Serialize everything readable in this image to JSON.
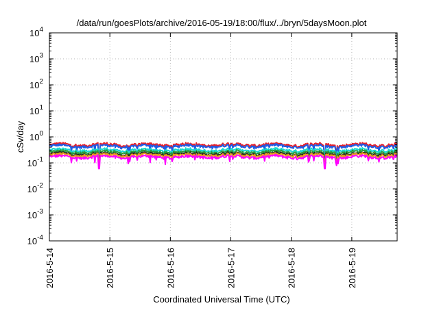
{
  "chart_data": {
    "type": "line",
    "title": "/data/run/goesPlots/archive/2016-05-19/18:00/flux/../bryn/5daysMoon.plot",
    "xlabel": "Coordinated Universal Time (UTC)",
    "ylabel": "cSv/day",
    "yscale": "log",
    "ylim": [
      0.0001,
      10000
    ],
    "xlim": [
      "2016-05-14",
      "2016-05-19 18:00"
    ],
    "x_tick_labels": [
      "2016-5-14",
      "2016-5-15",
      "2016-5-16",
      "2016-5-17",
      "2016-5-18",
      "2016-5-19"
    ],
    "y_tick_labels": [
      {
        "base": "10",
        "exp": "4"
      },
      {
        "base": "10",
        "exp": "3"
      },
      {
        "base": "10",
        "exp": "2"
      },
      {
        "base": "10",
        "exp": "1"
      },
      {
        "base": "10",
        "exp": "0"
      },
      {
        "base": "10",
        "exp": "-1"
      },
      {
        "base": "10",
        "exp": "-2"
      },
      {
        "base": "10",
        "exp": "-3"
      },
      {
        "base": "10",
        "exp": "-4"
      }
    ],
    "grid": true,
    "legend": "none",
    "series": [
      {
        "color": "#e8202a",
        "baseline": 0.5,
        "dip": 0.12
      },
      {
        "color": "#1e5ce6",
        "baseline": 0.44,
        "dip": 0.15
      },
      {
        "color": "#18d8d0",
        "baseline": 0.31,
        "dip": 0.17
      },
      {
        "color": "#2a9a3a",
        "baseline": 0.26,
        "dip": 0.14
      },
      {
        "color": "#222222",
        "baseline": 0.22,
        "dip": 0.13
      },
      {
        "color": "#e8a020",
        "baseline": 0.2,
        "dip": 0.11
      },
      {
        "color": "#ff00ff",
        "baseline": 0.17,
        "dip": 0.06
      }
    ]
  }
}
